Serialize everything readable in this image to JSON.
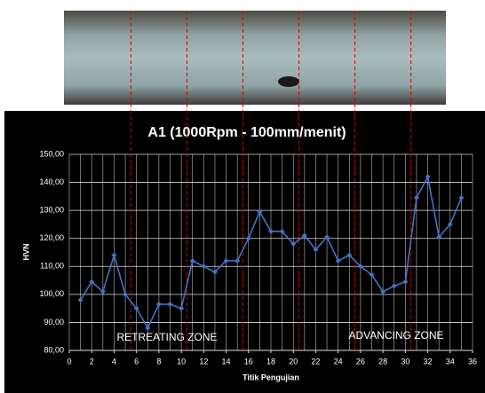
{
  "chart_data": {
    "type": "line",
    "title": "A1 (1000Rpm - 100mm/menit)",
    "x_label": "Titik Pengujian",
    "y_label": "HVN",
    "x": [
      1,
      2,
      3,
      4,
      5,
      6,
      7,
      8,
      9,
      10,
      11,
      12,
      13,
      14,
      15,
      16,
      17,
      18,
      19,
      20,
      21,
      22,
      23,
      24,
      25,
      26,
      27,
      28,
      29,
      30,
      31,
      32,
      33,
      34,
      35
    ],
    "series": [
      {
        "color": "#4472c4",
        "values": [
          98,
          104.5,
          101,
          114,
          100,
          95,
          88,
          96.5,
          96.5,
          95,
          112,
          110,
          108,
          112,
          112,
          120,
          129.5,
          122.5,
          122.5,
          118,
          121,
          116,
          120.5,
          112,
          114,
          110,
          107,
          101,
          103,
          104.5,
          134.5,
          142,
          120.5,
          125,
          134.5
        ]
      }
    ],
    "xlim": [
      0,
      36
    ],
    "xticks": [
      0,
      2,
      4,
      6,
      8,
      10,
      12,
      14,
      16,
      18,
      20,
      22,
      24,
      26,
      28,
      30,
      32,
      34,
      36
    ],
    "ylim": [
      80,
      150
    ],
    "yticks": [
      {
        "value": 80,
        "label": "80,00"
      },
      {
        "value": 90,
        "label": "90,00"
      },
      {
        "value": 100,
        "label": "100,00"
      },
      {
        "value": 110,
        "label": "110,00"
      },
      {
        "value": 120,
        "label": "120,00"
      },
      {
        "value": 130,
        "label": "130,00"
      },
      {
        "value": 140,
        "label": "140,00"
      },
      {
        "value": 150,
        "label": "150,00"
      }
    ],
    "grid": true,
    "zone_boundaries": [
      5.5,
      10.5,
      15.5,
      20.5,
      25.5,
      30.5
    ],
    "boundary_color": "#d00000",
    "annotations": [
      "RETREATING ZONE",
      "ADVANCING ZONE"
    ]
  }
}
